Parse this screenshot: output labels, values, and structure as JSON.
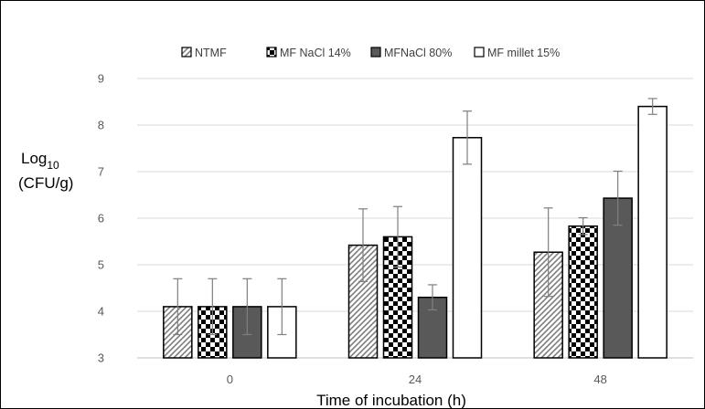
{
  "chart_data": {
    "type": "bar",
    "categories": [
      "0",
      "24",
      "48"
    ],
    "series": [
      {
        "name": "NTMF",
        "pattern": "diagonal-stripes",
        "values": [
          4.1,
          5.42,
          5.27
        ],
        "errors": [
          0.6,
          0.78,
          0.95
        ]
      },
      {
        "name": "MF NaCl 14%",
        "pattern": "checkerboard",
        "values": [
          4.1,
          5.6,
          5.83
        ],
        "errors": [
          0.6,
          0.65,
          0.18
        ]
      },
      {
        "name": "MFNaCl 80%",
        "pattern": "solid-dark-gray",
        "values": [
          4.1,
          4.3,
          6.43
        ],
        "errors": [
          0.6,
          0.27,
          0.58
        ]
      },
      {
        "name": "MF millet 15%",
        "pattern": "white",
        "values": [
          4.1,
          7.73,
          8.4
        ],
        "errors": [
          0.6,
          0.57,
          0.17
        ]
      }
    ],
    "xlabel": "Time of incubation (h)",
    "ylabel_line1_main": "Log",
    "ylabel_line1_sub": "10",
    "ylabel_line2": "(CFU/g)",
    "ylim": [
      3,
      9
    ],
    "yticks": [
      3,
      4,
      5,
      6,
      7,
      8,
      9
    ],
    "grid": true,
    "legend_position": "top",
    "colors": {
      "dark_bar": "#595959",
      "grid": "#d9d9d9",
      "error_bar": "#7f7f7f"
    }
  }
}
